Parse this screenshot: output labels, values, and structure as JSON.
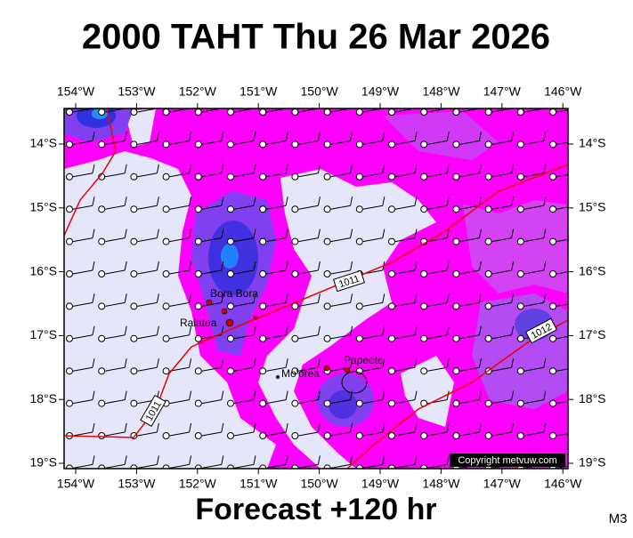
{
  "title": "2000 TAHT Thu 26 Mar 2026",
  "footer": "Forecast +120 hr",
  "model": "M3",
  "map": {
    "lon_labels": [
      "154°W",
      "153°W",
      "152°W",
      "151°W",
      "150°W",
      "149°W",
      "148°W",
      "147°W",
      "146°W"
    ],
    "lat_labels": [
      "14°S",
      "15°S",
      "16°S",
      "17°S",
      "18°S",
      "19°S"
    ],
    "places": [
      "Bora Bora",
      "Raiatea",
      "Mo'orea",
      "Papeete"
    ],
    "isobars": [
      "1011",
      "1011",
      "1012"
    ],
    "copyright": "Copyright metvuw.com"
  }
}
